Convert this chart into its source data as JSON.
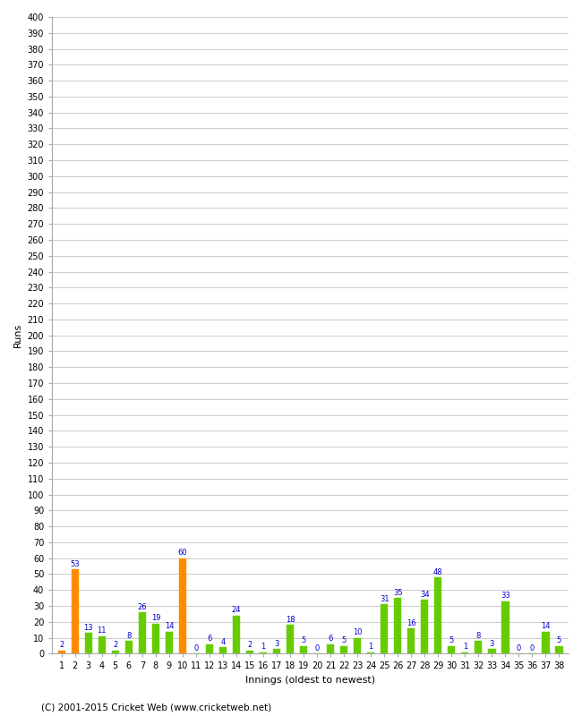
{
  "innings": [
    1,
    2,
    3,
    4,
    5,
    6,
    7,
    8,
    9,
    10,
    11,
    12,
    13,
    14,
    15,
    16,
    17,
    18,
    19,
    20,
    21,
    22,
    23,
    24,
    25,
    26,
    27,
    28,
    29,
    30,
    31,
    32,
    33,
    34,
    35,
    36,
    37,
    38
  ],
  "values": [
    2,
    53,
    13,
    11,
    2,
    8,
    26,
    19,
    14,
    60,
    0,
    6,
    4,
    24,
    2,
    1,
    3,
    18,
    5,
    0,
    6,
    5,
    10,
    1,
    31,
    35,
    16,
    34,
    48,
    5,
    1,
    8,
    3,
    33,
    0,
    0,
    14,
    5
  ],
  "colors": [
    "#ff8c00",
    "#ff8c00",
    "#66cc00",
    "#66cc00",
    "#66cc00",
    "#66cc00",
    "#66cc00",
    "#66cc00",
    "#66cc00",
    "#ff8c00",
    "#66cc00",
    "#66cc00",
    "#66cc00",
    "#66cc00",
    "#66cc00",
    "#66cc00",
    "#66cc00",
    "#66cc00",
    "#66cc00",
    "#66cc00",
    "#66cc00",
    "#66cc00",
    "#66cc00",
    "#66cc00",
    "#66cc00",
    "#66cc00",
    "#66cc00",
    "#66cc00",
    "#66cc00",
    "#66cc00",
    "#66cc00",
    "#66cc00",
    "#66cc00",
    "#66cc00",
    "#66cc00",
    "#66cc00",
    "#66cc00",
    "#66cc00"
  ],
  "xlabel": "Innings (oldest to newest)",
  "ylabel": "Runs",
  "ylim": [
    0,
    400
  ],
  "background_color": "#ffffff",
  "grid_color": "#cccccc",
  "label_color": "#0000cc",
  "copyright": "(C) 2001-2015 Cricket Web (www.cricketweb.net)"
}
